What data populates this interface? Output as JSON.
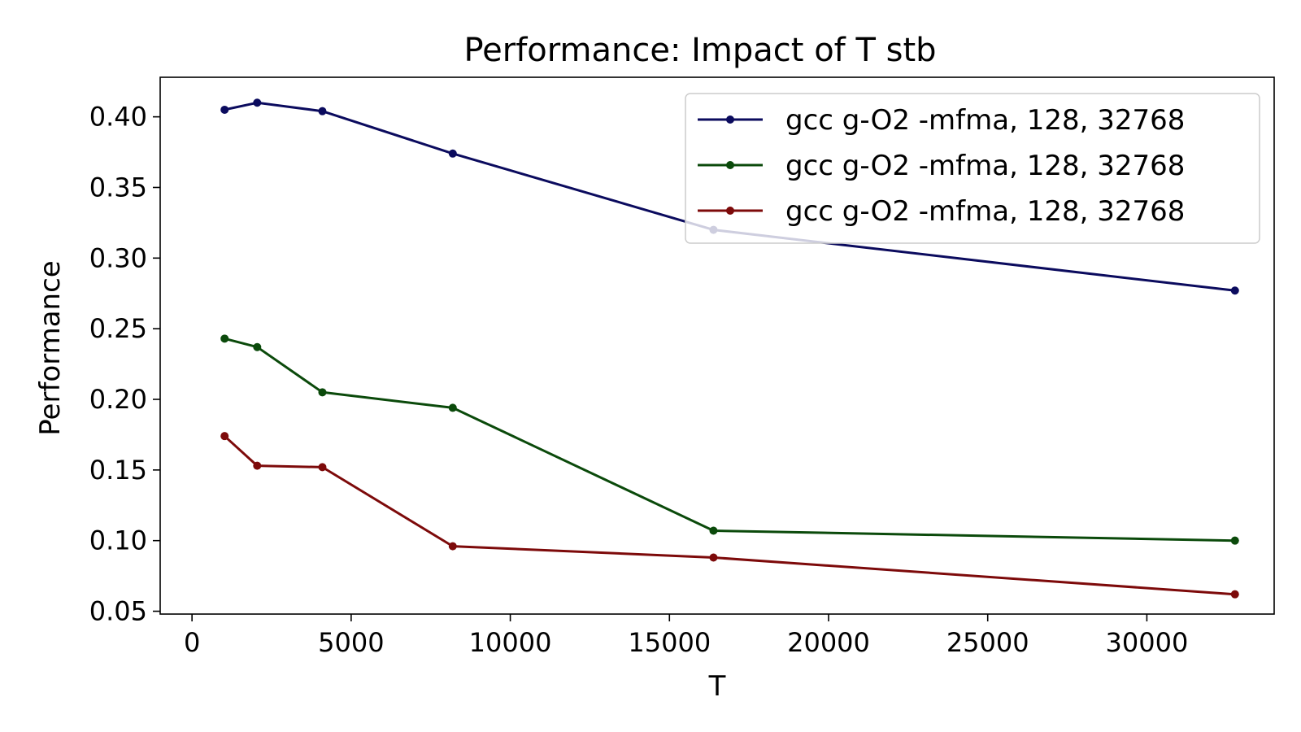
{
  "chart_data": {
    "type": "line",
    "title": "Performance: Impact of T stb",
    "xlabel": "T",
    "ylabel": "Performance",
    "xlim": [
      -1000,
      34000
    ],
    "ylim": [
      0.048,
      0.428
    ],
    "x_ticks": [
      0,
      5000,
      10000,
      15000,
      20000,
      25000,
      30000
    ],
    "x_tick_labels": [
      "0",
      "5000",
      "10000",
      "15000",
      "20000",
      "25000",
      "30000"
    ],
    "y_ticks": [
      0.05,
      0.1,
      0.15,
      0.2,
      0.25,
      0.3,
      0.35,
      0.4
    ],
    "y_tick_labels": [
      "0.05",
      "0.10",
      "0.15",
      "0.20",
      "0.25",
      "0.30",
      "0.35",
      "0.40"
    ],
    "grid": false,
    "legend_position": "top-right",
    "x": [
      1024,
      2048,
      4096,
      8192,
      16384,
      32768
    ],
    "series": [
      {
        "name": "gcc g-O2 -mfma, 128, 32768",
        "color": "#0b0b5e",
        "values": [
          0.405,
          0.41,
          0.404,
          0.374,
          0.32,
          0.277
        ]
      },
      {
        "name": "gcc g-O2 -mfma, 128, 32768",
        "color": "#0b4a0b",
        "values": [
          0.243,
          0.237,
          0.205,
          0.194,
          0.107,
          0.1
        ]
      },
      {
        "name": "gcc g-O2 -mfma, 128, 32768",
        "color": "#7d0a0a",
        "values": [
          0.174,
          0.153,
          0.152,
          0.096,
          0.088,
          0.062
        ]
      }
    ]
  }
}
